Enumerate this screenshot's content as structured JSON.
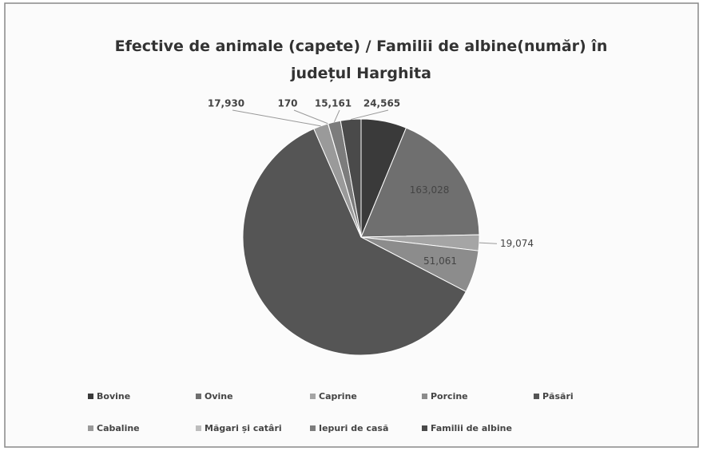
{
  "chart_data": {
    "type": "pie",
    "title": "Efective de animale (capete) / Familii de albine(număr) în județul Harghita",
    "categories": [
      "Bovine",
      "Ovine",
      "Caprine",
      "Porcine",
      "Păsări",
      "Cabaline",
      "Măgari și catâri",
      "Iepuri de casă",
      "Familii de albine"
    ],
    "values": [
      55000,
      163028,
      19074,
      51061,
      537000,
      17930,
      170,
      15161,
      24565
    ],
    "value_labels": [
      null,
      "163,028",
      "19,074",
      "51,061",
      null,
      "17,930",
      "170",
      "15,161",
      "24,565"
    ],
    "colors": [
      "#3a3a3a",
      "#6f6f6f",
      "#a5a5a5",
      "#8c8c8c",
      "#555555",
      "#9a9a9a",
      "#bdbdbd",
      "#7c7c7c",
      "#4a4a4a"
    ],
    "legend": "bottom"
  }
}
